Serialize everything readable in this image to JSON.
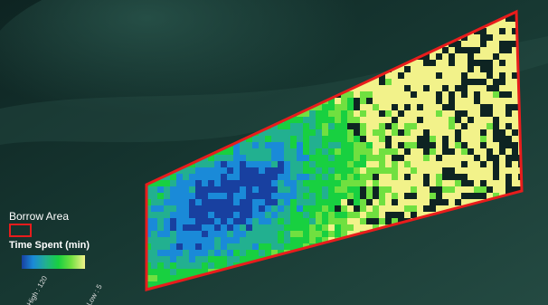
{
  "map": {
    "background_colors": [
      "#0e2422",
      "#173832",
      "#244a42"
    ],
    "borrow_area": {
      "stroke_color": "#e81c1c"
    },
    "heat_grid": {
      "color_scale": [
        "#1840a0",
        "#1a8ad8",
        "#22b090",
        "#18d040",
        "#70e040",
        "#f2f28a"
      ],
      "empty_color": "#0e2422"
    }
  },
  "legend": {
    "borrow_area_title": "Borrow Area",
    "time_spent_title": "Time Spent (min)",
    "high_label": "High : 120",
    "low_label": "Low : 5"
  }
}
